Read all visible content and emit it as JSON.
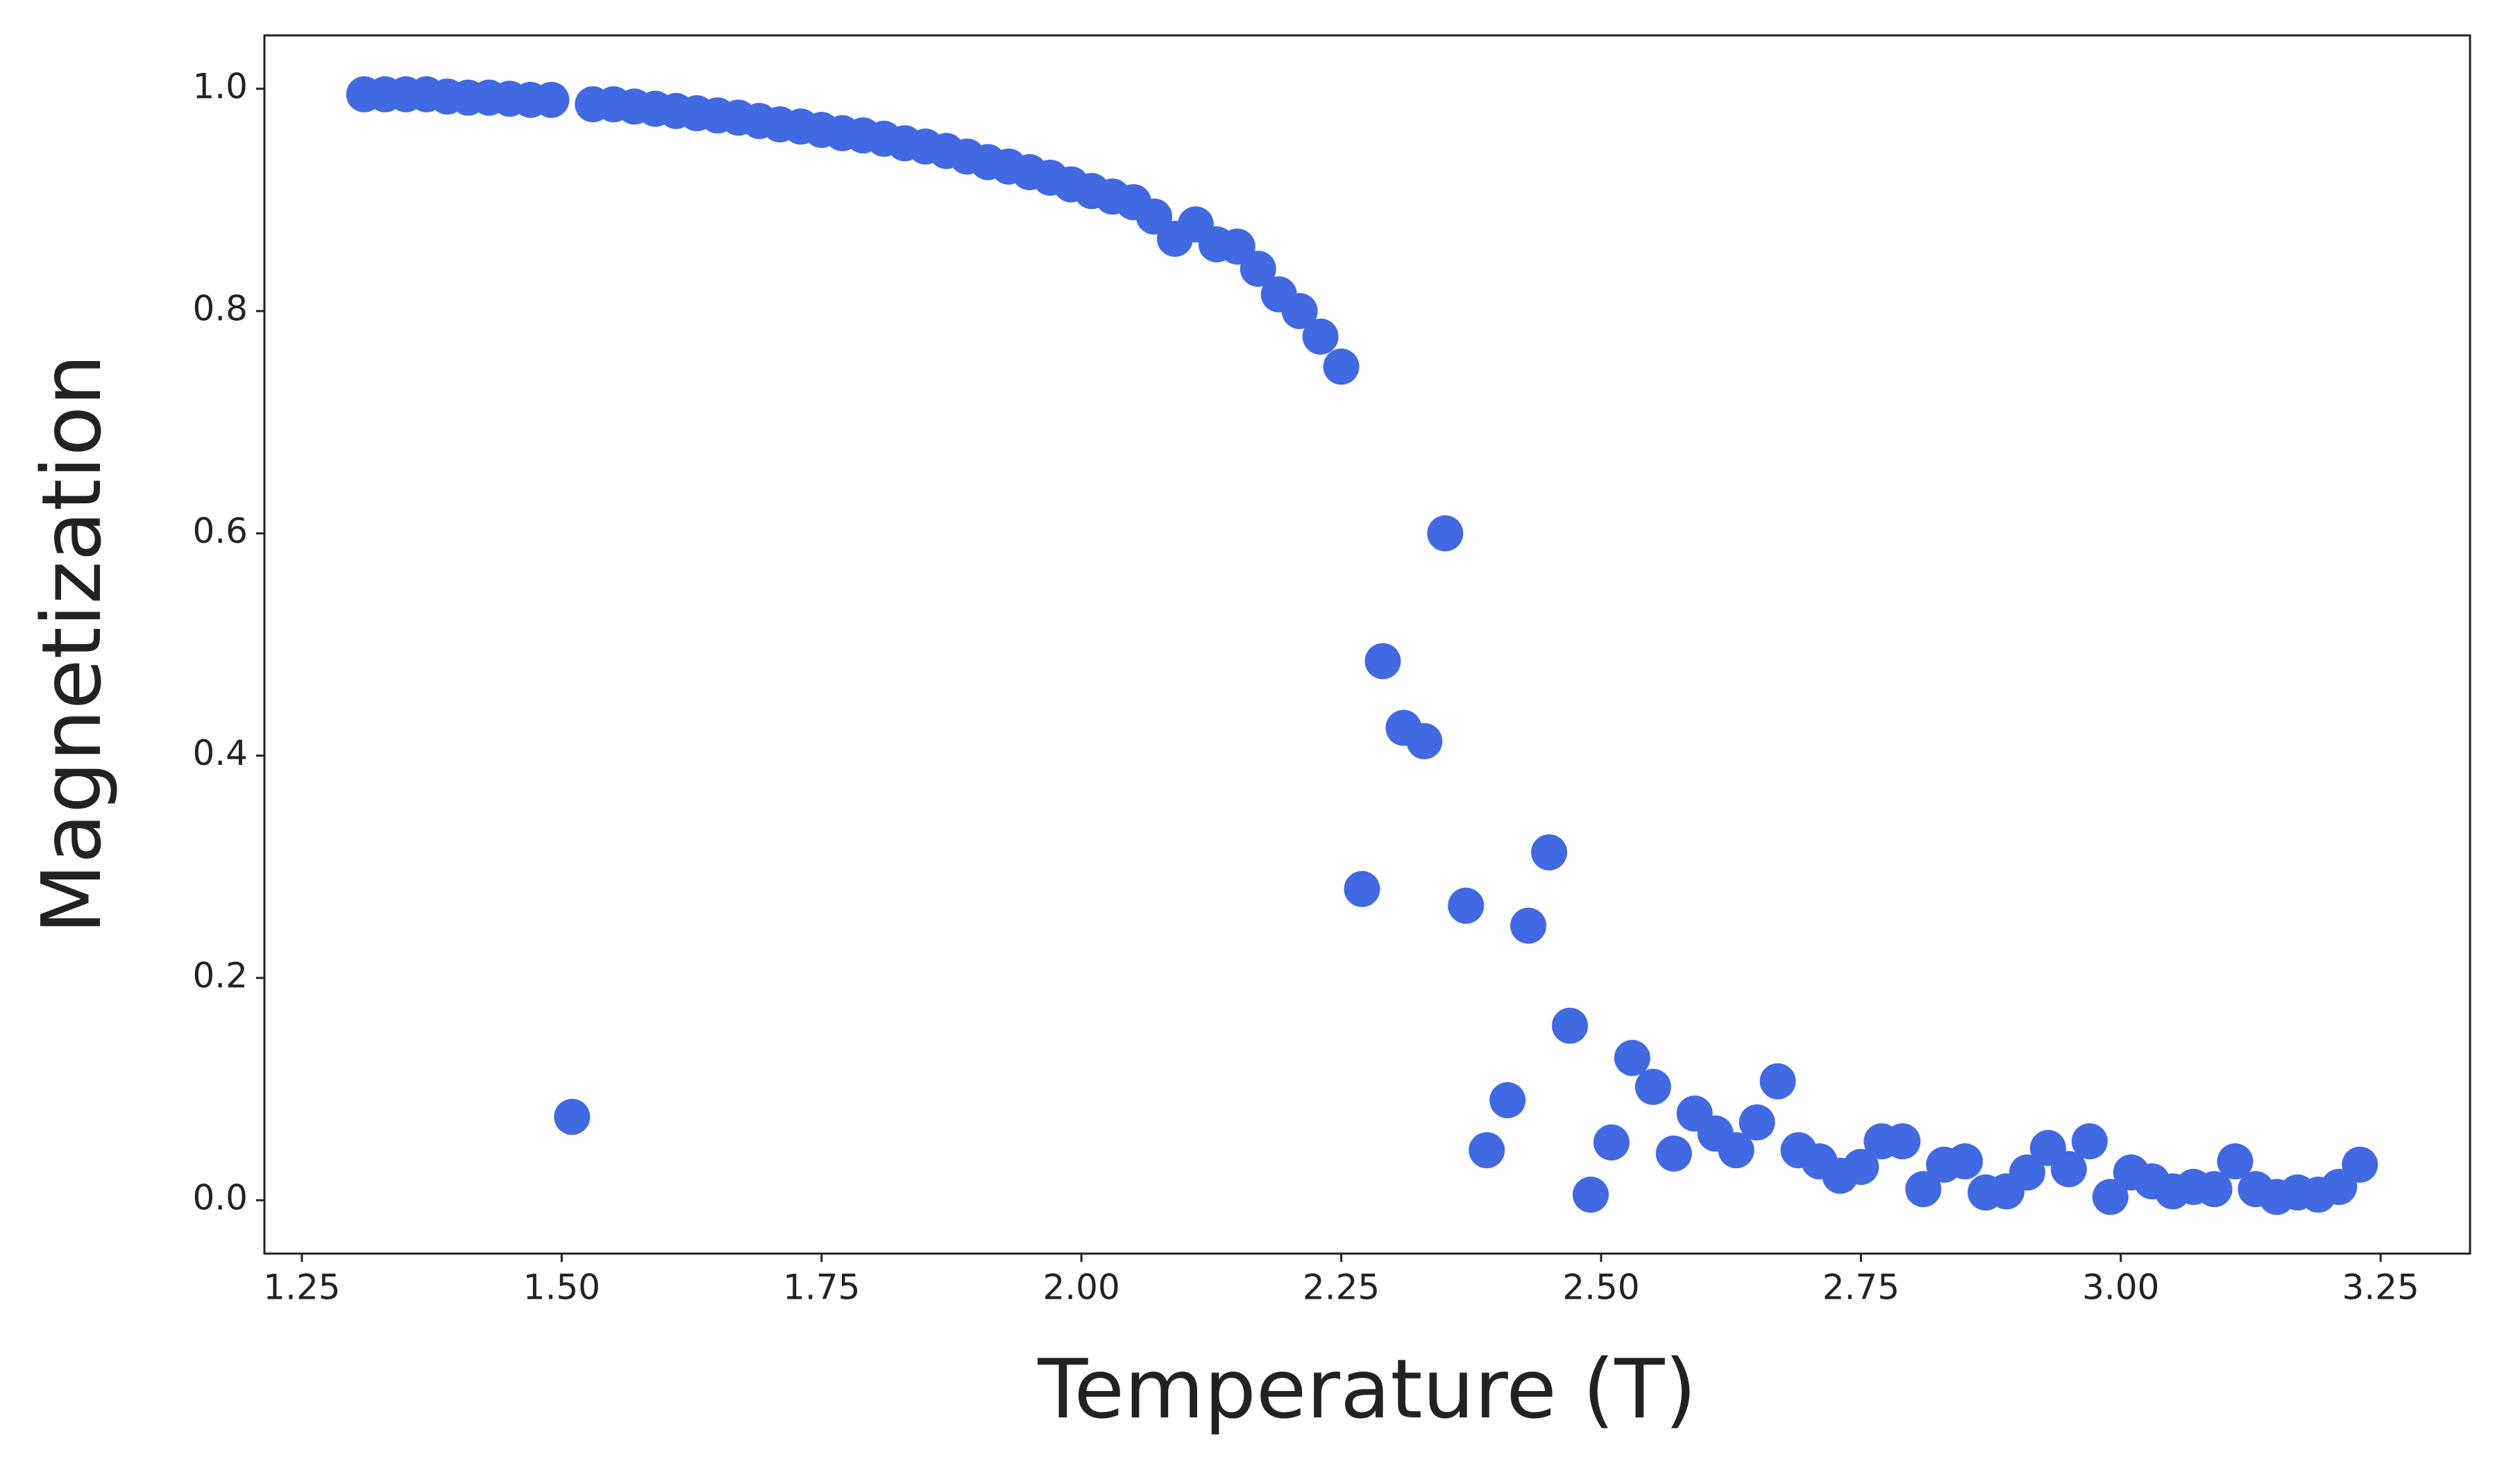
{
  "chart_data": {
    "type": "scatter",
    "xlabel": "Temperature (T)",
    "ylabel": "Magnetization",
    "color": "#4169e1",
    "x": [
      1.31,
      1.33,
      1.35,
      1.37,
      1.39,
      1.41,
      1.43,
      1.45,
      1.47,
      1.49,
      1.51,
      1.53,
      1.55,
      1.57,
      1.59,
      1.61,
      1.63,
      1.65,
      1.67,
      1.69,
      1.71,
      1.73,
      1.75,
      1.77,
      1.79,
      1.81,
      1.83,
      1.85,
      1.87,
      1.89,
      1.91,
      1.93,
      1.95,
      1.97,
      1.99,
      2.01,
      2.03,
      2.05,
      2.07,
      2.09,
      2.11,
      2.13,
      2.15,
      2.17,
      2.19,
      2.21,
      2.23,
      2.25,
      2.27,
      2.29,
      2.31,
      2.33,
      2.35,
      2.37,
      2.39,
      2.41,
      2.43,
      2.45,
      2.47,
      2.49,
      2.51,
      2.53,
      2.55,
      2.57,
      2.59,
      2.61,
      2.63,
      2.65,
      2.67,
      2.69,
      2.71,
      2.73,
      2.75,
      2.77,
      2.79,
      2.81,
      2.83,
      2.85,
      2.87,
      2.89,
      2.91,
      2.93,
      2.95,
      2.97,
      2.99,
      3.01,
      3.03,
      3.05,
      3.07,
      3.09,
      3.11,
      3.13,
      3.15,
      3.17,
      3.19,
      3.21,
      3.23
    ],
    "values": [
      0.995,
      0.995,
      0.995,
      0.995,
      0.993,
      0.992,
      0.992,
      0.991,
      0.99,
      0.99,
      0.075,
      0.986,
      0.986,
      0.984,
      0.982,
      0.98,
      0.978,
      0.976,
      0.974,
      0.971,
      0.968,
      0.966,
      0.963,
      0.96,
      0.958,
      0.955,
      0.951,
      0.948,
      0.944,
      0.939,
      0.934,
      0.93,
      0.925,
      0.92,
      0.914,
      0.908,
      0.903,
      0.898,
      0.885,
      0.865,
      0.878,
      0.86,
      0.858,
      0.838,
      0.815,
      0.8,
      0.777,
      0.75,
      0.28,
      0.485,
      0.425,
      0.413,
      0.6,
      0.265,
      0.045,
      0.09,
      0.247,
      0.313,
      0.157,
      0.005,
      0.052,
      0.128,
      0.102,
      0.042,
      0.078,
      0.06,
      0.045,
      0.07,
      0.107,
      0.045,
      0.035,
      0.022,
      0.03,
      0.053,
      0.053,
      0.01,
      0.032,
      0.035,
      0.007,
      0.008,
      0.025,
      0.047,
      0.028,
      0.053,
      0.003,
      0.025,
      0.017,
      0.008,
      0.012,
      0.01,
      0.035,
      0.01,
      0.003,
      0.007,
      0.005,
      0.012,
      0.032
    ],
    "xlim": [
      1.214,
      3.336
    ],
    "ylim": [
      -0.048,
      1.048
    ],
    "xticks": [
      1.25,
      {
        "value": 1.5,
        "label": "1.50"
      },
      1.75,
      {
        "value": 2.0,
        "label": "2.00"
      },
      2.25,
      {
        "value": 2.5,
        "label": "2.50"
      },
      2.75,
      {
        "value": 3.0,
        "label": "3.00"
      },
      3.25
    ],
    "yticks": [
      {
        "value": 0,
        "label": "0.0"
      },
      0.2,
      0.4,
      0.6,
      0.8,
      {
        "value": 1.0,
        "label": "1.0"
      }
    ],
    "grid": false
  }
}
